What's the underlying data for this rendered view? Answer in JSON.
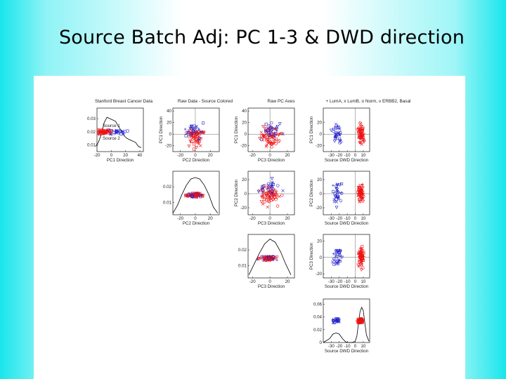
{
  "slide": {
    "title": "Source Batch Adj:  PC 1-3 & DWD direction"
  },
  "colors": {
    "source1": "#ee1111",
    "source2": "#2222cc",
    "curve": "#000000",
    "refline": "#444444"
  },
  "headers": {
    "panel_1_1": "Stanford Breast Cancer Data",
    "panel_1_2": "Raw Data - Source Colored",
    "panel_1_3": "Raw PC Axes",
    "panel_1_4": "+ LumA, x LumB, o Norm, v ERBB2, Basal"
  },
  "chart_data": {
    "type": "scatter",
    "description_source_labels": [
      "Source 1",
      "Source 2"
    ],
    "variables": [
      "PC1 Direction",
      "PC2 Direction",
      "PC3 Direction",
      "Source DWD Direction"
    ],
    "marker_legend": "+ LumA, x LumB, o Norm, v ERBB2, Basal",
    "diagonal": [
      {
        "variable": "PC1 Direction",
        "xlim": [
          -20,
          45
        ],
        "xticks": [
          -20,
          0,
          20,
          40
        ],
        "yticks": [
          0.01,
          0.02,
          0.03
        ],
        "ylim": [
          0.005,
          0.038
        ],
        "legend": [
          "Source 1",
          "Source 2"
        ],
        "density_x": [
          -22,
          -18,
          -14,
          -10,
          -6,
          -2,
          2,
          6,
          10,
          14,
          18,
          22,
          26,
          30,
          34,
          38,
          42
        ],
        "density_y": [
          0.009,
          0.012,
          0.018,
          0.027,
          0.031,
          0.03,
          0.029,
          0.028,
          0.024,
          0.021,
          0.017,
          0.015,
          0.014,
          0.013,
          0.012,
          0.009,
          0.008
        ]
      },
      {
        "variable": "PC2 Direction",
        "xlim": [
          -30,
          32
        ],
        "xticks": [
          -20,
          0,
          20
        ],
        "yticks": [
          0.01,
          0.02
        ],
        "ylim": [
          0.002,
          0.03
        ],
        "density_x": [
          -30,
          -24,
          -18,
          -12,
          -6,
          0,
          6,
          12,
          18,
          24,
          30
        ],
        "density_y": [
          0.003,
          0.008,
          0.015,
          0.021,
          0.025,
          0.026,
          0.025,
          0.021,
          0.015,
          0.007,
          0.003
        ]
      },
      {
        "variable": "PC3 Direction",
        "xlim": [
          -25,
          28
        ],
        "xticks": [
          -20,
          0,
          20
        ],
        "yticks": [
          0.01,
          0.02
        ],
        "ylim": [
          0.002,
          0.03
        ],
        "density_x": [
          -24,
          -18,
          -12,
          -6,
          0,
          6,
          12,
          18,
          24
        ],
        "density_y": [
          0.004,
          0.011,
          0.018,
          0.024,
          0.027,
          0.025,
          0.019,
          0.011,
          0.004
        ]
      },
      {
        "variable": "Source DWD Direction",
        "xlim": [
          -40,
          18
        ],
        "xticks": [
          -30,
          -20,
          -10,
          0,
          10
        ],
        "yticks": [
          0,
          0.02,
          0.04,
          0.06
        ],
        "ylim": [
          0,
          0.068
        ],
        "density_x": [
          -40,
          -32,
          -28,
          -24,
          -20,
          -16,
          -12,
          -8,
          -4,
          0,
          2,
          4,
          6,
          8,
          10,
          12,
          14,
          17
        ],
        "density_y": [
          0.0,
          0.006,
          0.013,
          0.015,
          0.013,
          0.006,
          0.001,
          0.0,
          0.0,
          0.002,
          0.01,
          0.03,
          0.048,
          0.055,
          0.05,
          0.03,
          0.012,
          0.002
        ]
      }
    ],
    "scatter_panels": [
      {
        "row": 1,
        "col": 2,
        "x": "PC2 Direction",
        "y": "PC1 Direction",
        "xlim": [
          -30,
          32
        ],
        "ylim": [
          -30,
          45
        ],
        "xticks": [
          -20,
          0,
          20
        ],
        "yticks": [
          -20,
          0,
          20,
          40
        ]
      },
      {
        "row": 1,
        "col": 3,
        "x": "PC3 Direction",
        "y": "PC1 Direction",
        "xlim": [
          -25,
          28
        ],
        "ylim": [
          -30,
          45
        ],
        "xticks": [
          -20,
          0,
          20
        ],
        "yticks": [
          -20,
          0,
          20,
          40
        ]
      },
      {
        "row": 1,
        "col": 4,
        "x": "Source DWD Direction",
        "y": "PC1 Direction",
        "xlim": [
          -40,
          18
        ],
        "ylim": [
          -30,
          45
        ],
        "xticks": [
          -30,
          -20,
          -10,
          0,
          10
        ],
        "yticks": [
          -20,
          0,
          20
        ]
      },
      {
        "row": 2,
        "col": 3,
        "x": "PC3 Direction",
        "y": "PC2 Direction",
        "xlim": [
          -25,
          28
        ],
        "ylim": [
          -30,
          32
        ],
        "xticks": [
          -20,
          0,
          20
        ],
        "yticks": [
          -20,
          0,
          20
        ]
      },
      {
        "row": 2,
        "col": 4,
        "x": "Source DWD Direction",
        "y": "PC2 Direction",
        "xlim": [
          -40,
          18
        ],
        "ylim": [
          -30,
          32
        ],
        "xticks": [
          -30,
          -20,
          -10,
          0,
          10
        ],
        "yticks": [
          -20,
          0,
          20
        ]
      },
      {
        "row": 3,
        "col": 4,
        "x": "Source DWD Direction",
        "y": "PC3 Direction",
        "xlim": [
          -40,
          18
        ],
        "ylim": [
          -25,
          28
        ],
        "xticks": [
          -30,
          -20,
          -10,
          0,
          10
        ],
        "yticks": [
          -20,
          0,
          20
        ]
      }
    ]
  }
}
